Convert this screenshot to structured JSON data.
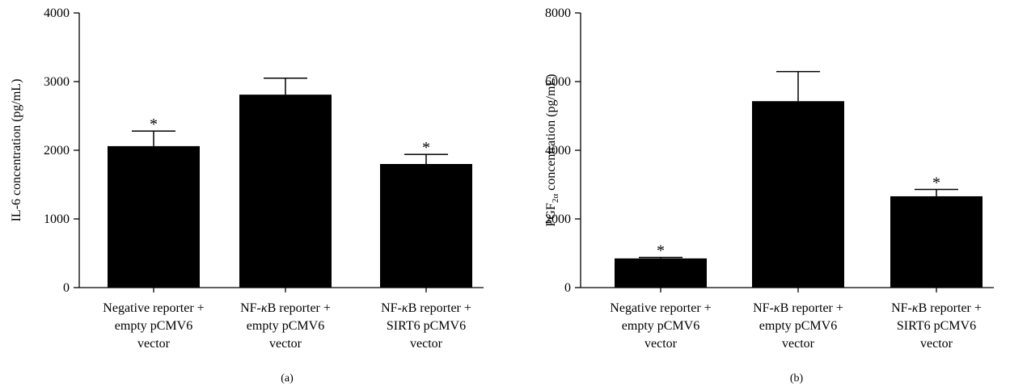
{
  "chart_data": [
    {
      "type": "bar",
      "panel_label": "(a)",
      "ylabel": "IL-6 concentration (pg/mL)",
      "ylim": [
        0,
        4000
      ],
      "yticks": [
        "0",
        "1000",
        "2000",
        "3000",
        "4000"
      ],
      "categories": [
        [
          "Negative reporter +",
          "empty pCMV6",
          "vector"
        ],
        [
          "NF-κB reporter +",
          "empty pCMV6",
          "vector"
        ],
        [
          "NF-κB reporter +",
          "SIRT6 pCMV6",
          "vector"
        ]
      ],
      "values": [
        2060,
        2810,
        1800
      ],
      "errors": [
        220,
        240,
        140
      ],
      "annotations": [
        "*",
        "",
        "*"
      ],
      "color": "#000000"
    },
    {
      "type": "bar",
      "panel_label": "(b)",
      "ylabel": "PGF2α concentration (pg/mL)",
      "ylim": [
        0,
        8000
      ],
      "yticks": [
        "0",
        "2000",
        "4000",
        "6000",
        "8000"
      ],
      "categories": [
        [
          "Negative reporter +",
          "empty pCMV6",
          "vector"
        ],
        [
          "NF-κB reporter +",
          "empty pCMV6",
          "vector"
        ],
        [
          "NF-κB reporter +",
          "SIRT6 pCMV6",
          "vector"
        ]
      ],
      "values": [
        850,
        5430,
        2660
      ],
      "errors": [
        30,
        860,
        200
      ],
      "annotations": [
        "*",
        "",
        "*"
      ],
      "color": "#000000"
    }
  ]
}
